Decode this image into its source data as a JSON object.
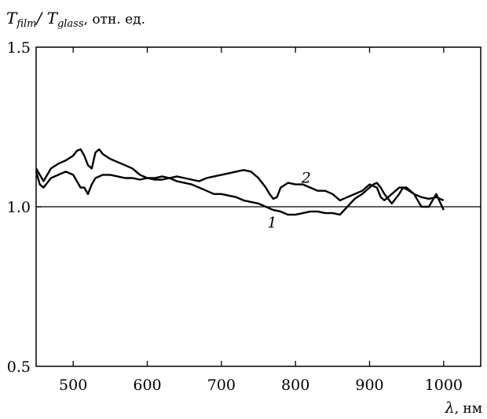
{
  "chart_data": {
    "type": "line",
    "title": "",
    "ylabel": {
      "main": "T",
      "sub1": "film",
      "sep": "/ T",
      "sub2": "glass",
      "unit": ", отн. ед."
    },
    "xlabel": {
      "symbol": "λ",
      "unit": ", нм"
    },
    "xlim": [
      450,
      1050
    ],
    "ylim": [
      0.5,
      1.5
    ],
    "x_ticks": [
      500,
      600,
      700,
      800,
      900,
      1000
    ],
    "x_tick_labels": [
      "500",
      "600",
      "700",
      "800",
      "900",
      "1000"
    ],
    "y_tick_labels": [
      {
        "value": 0.5,
        "label": "0.5"
      },
      {
        "value": 1.0,
        "label": "1.0"
      },
      {
        "value": 1.5,
        "label": "1.5"
      }
    ],
    "reference_line": 1.0,
    "grid": false,
    "series": [
      {
        "label": "1",
        "label_at": [
          762,
          0.935
        ],
        "x": [
          450,
          455,
          460,
          465,
          470,
          480,
          490,
          500,
          505,
          510,
          515,
          520,
          525,
          530,
          535,
          540,
          550,
          560,
          570,
          580,
          590,
          600,
          610,
          620,
          630,
          640,
          650,
          660,
          670,
          680,
          690,
          700,
          710,
          720,
          730,
          740,
          750,
          760,
          770,
          780,
          790,
          800,
          810,
          820,
          830,
          840,
          850,
          860,
          870,
          880,
          890,
          900,
          905,
          910,
          915,
          920,
          930,
          940,
          945,
          950,
          960,
          970,
          980,
          985,
          990,
          1000
        ],
        "y": [
          1.12,
          1.1,
          1.08,
          1.1,
          1.12,
          1.135,
          1.145,
          1.16,
          1.175,
          1.18,
          1.16,
          1.13,
          1.12,
          1.17,
          1.18,
          1.165,
          1.15,
          1.14,
          1.13,
          1.12,
          1.1,
          1.09,
          1.085,
          1.085,
          1.09,
          1.08,
          1.075,
          1.07,
          1.06,
          1.05,
          1.04,
          1.04,
          1.035,
          1.03,
          1.02,
          1.015,
          1.01,
          1.0,
          0.99,
          0.985,
          0.975,
          0.975,
          0.98,
          0.985,
          0.985,
          0.98,
          0.98,
          0.975,
          1.0,
          1.025,
          1.04,
          1.06,
          1.07,
          1.075,
          1.06,
          1.04,
          1.01,
          1.04,
          1.06,
          1.055,
          1.04,
          1.0,
          1.0,
          1.02,
          1.04,
          0.99
        ]
      },
      {
        "label": "2",
        "label_at": [
          808,
          1.075
        ],
        "x": [
          450,
          455,
          460,
          465,
          470,
          480,
          490,
          500,
          505,
          510,
          515,
          520,
          525,
          530,
          540,
          550,
          560,
          570,
          580,
          590,
          600,
          610,
          620,
          630,
          640,
          650,
          660,
          670,
          680,
          690,
          700,
          710,
          720,
          730,
          740,
          750,
          760,
          765,
          770,
          775,
          780,
          790,
          800,
          810,
          820,
          830,
          840,
          850,
          860,
          870,
          880,
          890,
          900,
          910,
          915,
          920,
          930,
          940,
          950,
          960,
          970,
          980,
          990,
          1000
        ],
        "y": [
          1.11,
          1.07,
          1.06,
          1.075,
          1.09,
          1.1,
          1.11,
          1.1,
          1.08,
          1.06,
          1.06,
          1.04,
          1.07,
          1.09,
          1.1,
          1.1,
          1.095,
          1.09,
          1.09,
          1.085,
          1.09,
          1.09,
          1.095,
          1.09,
          1.095,
          1.09,
          1.085,
          1.08,
          1.09,
          1.095,
          1.1,
          1.105,
          1.11,
          1.115,
          1.11,
          1.09,
          1.06,
          1.04,
          1.025,
          1.03,
          1.06,
          1.075,
          1.07,
          1.07,
          1.06,
          1.05,
          1.05,
          1.04,
          1.02,
          1.03,
          1.04,
          1.05,
          1.07,
          1.06,
          1.03,
          1.02,
          1.04,
          1.06,
          1.06,
          1.04,
          1.03,
          1.025,
          1.03,
          1.02
        ]
      }
    ]
  }
}
